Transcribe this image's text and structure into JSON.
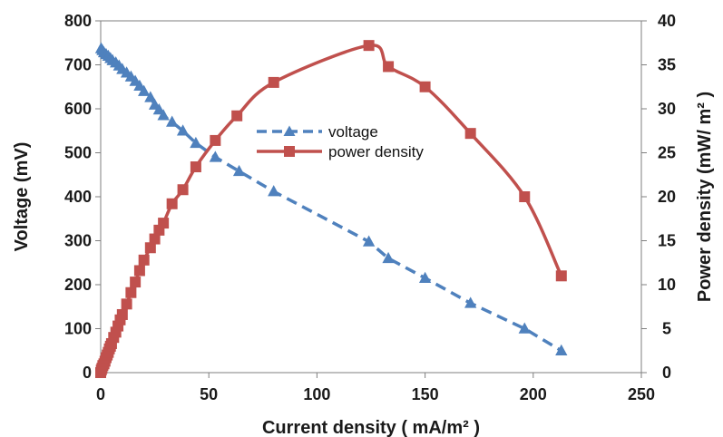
{
  "chart_data": {
    "type": "line",
    "title": "",
    "xlabel": "Current density ( mA/m² )",
    "ylabel": "Voltage (mV)",
    "y2label": "Power density (mW/ m² )",
    "xlim": [
      0,
      250
    ],
    "ylim": [
      0,
      800
    ],
    "y2lim": [
      0,
      40
    ],
    "x_ticks": [
      "0",
      "50",
      "100",
      "150",
      "200",
      "250"
    ],
    "y_ticks": [
      "0",
      "100",
      "200",
      "300",
      "400",
      "500",
      "600",
      "700",
      "800"
    ],
    "y2_ticks": [
      "0",
      "5",
      "10",
      "15",
      "20",
      "25",
      "30",
      "35",
      "40"
    ],
    "grid": false,
    "legend_position": "center",
    "series": [
      {
        "name": "voltage",
        "axis": "left",
        "color": "#4f81bd",
        "marker": "triangle",
        "line_style": "dashed",
        "x": [
          0.2,
          0.8,
          1.5,
          2.5,
          3.5,
          4.5,
          5.5,
          7,
          8.5,
          10,
          12,
          14,
          16,
          18,
          20,
          23,
          25,
          27,
          29,
          33,
          38,
          44,
          53,
          64,
          80,
          124,
          133,
          150,
          171,
          196,
          213
        ],
        "values": [
          737,
          733,
          728,
          724,
          720,
          715,
          710,
          705,
          698,
          690,
          682,
          673,
          663,
          652,
          640,
          626,
          609,
          598,
          585,
          570,
          550,
          522,
          490,
          458,
          412,
          298,
          260,
          215,
          158,
          100,
          50
        ]
      },
      {
        "name": "power density",
        "axis": "right",
        "color": "#c0504d",
        "marker": "square",
        "line_style": "solid",
        "x": [
          0,
          0.3,
          0.6,
          1,
          1.5,
          2,
          2.5,
          3,
          3.5,
          4,
          4.5,
          5,
          6,
          7,
          8,
          9,
          10,
          12,
          14,
          16,
          18,
          20,
          23,
          25,
          27,
          29,
          33,
          38,
          44,
          53,
          63,
          80,
          124,
          133,
          150,
          171,
          196,
          213
        ],
        "values": [
          0,
          0.3,
          0.5,
          0.8,
          1,
          1.3,
          1.7,
          2,
          2.3,
          2.7,
          3,
          3.3,
          4,
          4.6,
          5.3,
          6,
          6.6,
          7.8,
          9.1,
          10.3,
          11.6,
          12.8,
          14.2,
          15.2,
          16.2,
          17,
          19.2,
          20.8,
          23.4,
          26.4,
          29.2,
          33,
          37.2,
          34.8,
          32.5,
          27.2,
          20,
          11
        ]
      }
    ]
  }
}
